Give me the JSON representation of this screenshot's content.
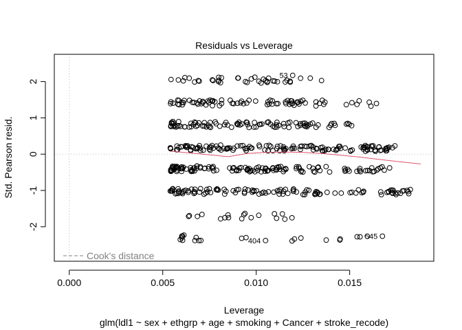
{
  "chart_data": {
    "type": "scatter",
    "title": "Residuals vs Leverage",
    "xlabel": "Leverage",
    "subtitle": "glm(ldl1 ~ sex + ethgrp + age + smoking + Cancer + stroke_recode)",
    "ylabel": "Std. Pearson resid.",
    "xlim": [
      -0.0008,
      0.0195
    ],
    "ylim": [
      -2.95,
      2.75
    ],
    "x_ticks": [
      0.0,
      0.005,
      0.01,
      0.015
    ],
    "x_tick_labels": [
      "0.000",
      "0.005",
      "0.010",
      "0.015"
    ],
    "y_ticks": [
      -2,
      -1,
      0,
      1,
      2
    ],
    "y_tick_labels": [
      "-2",
      "-1",
      "0",
      "1",
      "2"
    ],
    "reference_lines": {
      "horizontal_zero": true,
      "vertical_zero": true
    },
    "legend": {
      "entries": [
        "Cook's distance"
      ],
      "placement": "bottom-left"
    },
    "point_labels": [
      {
        "label": "53",
        "x": 0.01195,
        "y": 2.17
      },
      {
        "label": "545",
        "x": 0.01675,
        "y": -2.26
      },
      {
        "label": "404",
        "x": 0.0105,
        "y": -2.38
      }
    ],
    "bands": [
      {
        "y": 2.05,
        "count": 38,
        "x_min": 0.0054,
        "x_max": 0.0138
      },
      {
        "y": 1.42,
        "count": 78,
        "x_min": 0.0054,
        "x_max": 0.0165
      },
      {
        "y": 0.82,
        "count": 95,
        "x_min": 0.0054,
        "x_max": 0.0152
      },
      {
        "y": 0.18,
        "count": 140,
        "x_min": 0.0054,
        "x_max": 0.0176
      },
      {
        "y": -0.4,
        "count": 130,
        "x_min": 0.0054,
        "x_max": 0.0172
      },
      {
        "y": -1.02,
        "count": 115,
        "x_min": 0.0054,
        "x_max": 0.0188
      },
      {
        "y": -1.7,
        "count": 18,
        "x_min": 0.0057,
        "x_max": 0.0126
      },
      {
        "y": -2.3,
        "count": 22,
        "x_min": 0.0059,
        "x_max": 0.0169
      }
    ],
    "smoother": {
      "x": [
        0.0054,
        0.0065,
        0.0075,
        0.0085,
        0.0095,
        0.0105,
        0.0115,
        0.0125,
        0.0135,
        0.0145,
        0.0155,
        0.0165,
        0.0175,
        0.0188
      ],
      "y": [
        0.08,
        0.03,
        -0.02,
        -0.07,
        0.02,
        0.05,
        0.06,
        0.05,
        0.02,
        -0.03,
        -0.08,
        -0.14,
        -0.2,
        -0.27
      ]
    },
    "colors": {
      "points": "#000000",
      "smoother": "#DF536B",
      "reference": "#BEBEBE",
      "legend_text": "#808080"
    }
  }
}
